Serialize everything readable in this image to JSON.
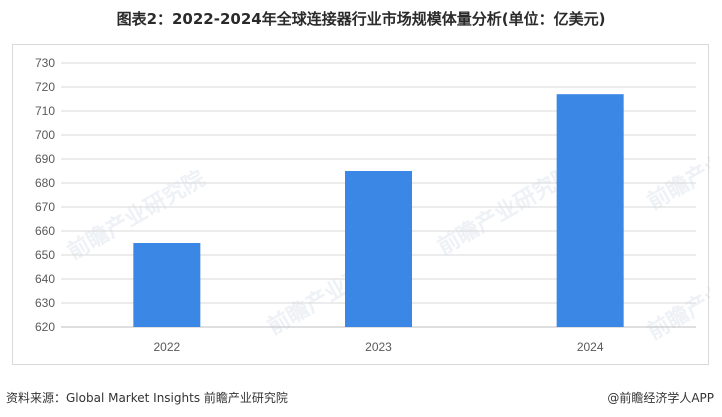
{
  "title": "图表2：2022-2024年全球连接器行业市场规模体量分析(单位：亿美元)",
  "footer": {
    "source": "资料来源：Global Market Insights 前瞻产业研究院",
    "brand": "@前瞻经济学人APP"
  },
  "watermark": "前瞻产业研究院",
  "colors": {
    "bar": "#3a87e6",
    "grid": "#d9d9d9",
    "axis": "#bfbfbf"
  },
  "chart_data": {
    "type": "bar",
    "title": "图表2：2022-2024年全球连接器行业市场规模体量分析(单位：亿美元)",
    "categories": [
      "2022",
      "2023",
      "2024"
    ],
    "values": [
      655,
      685,
      717
    ],
    "ylim": [
      620,
      730
    ],
    "yticks": [
      620,
      630,
      640,
      650,
      660,
      670,
      680,
      690,
      700,
      710,
      720,
      730
    ],
    "grid": true,
    "legend": "none"
  }
}
